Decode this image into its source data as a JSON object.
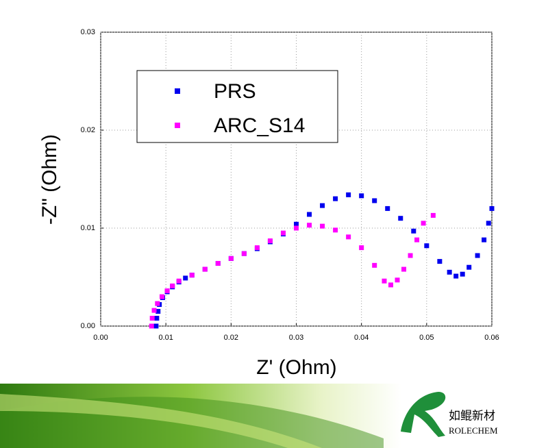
{
  "chart_data": {
    "type": "scatter",
    "x_label": "Z' (Ohm)",
    "y_label": "-Z\" (Ohm)",
    "xlim": [
      0,
      0.06
    ],
    "ylim": [
      0,
      0.03
    ],
    "xticks": [
      {
        "value": 0,
        "label": "0.00"
      },
      {
        "value": 0.01,
        "label": "0.01"
      },
      {
        "value": 0.02,
        "label": "0.02"
      },
      {
        "value": 0.03,
        "label": "0.03"
      },
      {
        "value": 0.04,
        "label": "0.04"
      },
      {
        "value": 0.05,
        "label": "0.05"
      },
      {
        "value": 0.06,
        "label": "0.06"
      }
    ],
    "yticks": [
      {
        "value": 0,
        "label": "0.00"
      },
      {
        "value": 0.01,
        "label": "0.01"
      },
      {
        "value": 0.02,
        "label": "0.02"
      },
      {
        "value": 0.03,
        "label": "0.03"
      }
    ],
    "grid": true,
    "legend": "upper left",
    "series": [
      {
        "name": "PRS",
        "color": "#0000ee",
        "x": [
          0.0085,
          0.0086,
          0.0088,
          0.009,
          0.0095,
          0.0102,
          0.011,
          0.012,
          0.013,
          0.014,
          0.016,
          0.018,
          0.02,
          0.022,
          0.024,
          0.026,
          0.028,
          0.03,
          0.032,
          0.034,
          0.036,
          0.038,
          0.04,
          0.042,
          0.044,
          0.046,
          0.048,
          0.05,
          0.052,
          0.0535,
          0.0545,
          0.0555,
          0.0565,
          0.0578,
          0.0588,
          0.0595,
          0.06
        ],
        "values": [
          0,
          0.0008,
          0.0015,
          0.0022,
          0.0029,
          0.0035,
          0.004,
          0.0045,
          0.0049,
          0.0052,
          0.0058,
          0.0064,
          0.0069,
          0.0074,
          0.0079,
          0.0086,
          0.0094,
          0.0104,
          0.0114,
          0.0123,
          0.013,
          0.0134,
          0.0133,
          0.0128,
          0.012,
          0.011,
          0.0097,
          0.0082,
          0.0066,
          0.0055,
          0.0051,
          0.0053,
          0.006,
          0.0072,
          0.0088,
          0.0105,
          0.012
        ]
      },
      {
        "name": "ARC_S14",
        "color": "#ff00ff",
        "x": [
          0.0078,
          0.0079,
          0.0082,
          0.0087,
          0.0094,
          0.0102,
          0.011,
          0.012,
          0.014,
          0.016,
          0.018,
          0.02,
          0.022,
          0.024,
          0.026,
          0.028,
          0.03,
          0.032,
          0.034,
          0.036,
          0.038,
          0.04,
          0.042,
          0.0435,
          0.0445,
          0.0455,
          0.0465,
          0.0475,
          0.0485,
          0.0495,
          0.051
        ],
        "values": [
          0,
          0.0008,
          0.0016,
          0.0023,
          0.003,
          0.0036,
          0.0041,
          0.0046,
          0.0052,
          0.0058,
          0.0064,
          0.0069,
          0.0074,
          0.008,
          0.0087,
          0.0095,
          0.01,
          0.0103,
          0.0102,
          0.0098,
          0.0091,
          0.008,
          0.0062,
          0.0046,
          0.0042,
          0.0047,
          0.0058,
          0.0072,
          0.0088,
          0.0105,
          0.0113
        ]
      }
    ]
  },
  "logo": {
    "name": "如鲲新材",
    "sub": "ROLECHEM"
  }
}
